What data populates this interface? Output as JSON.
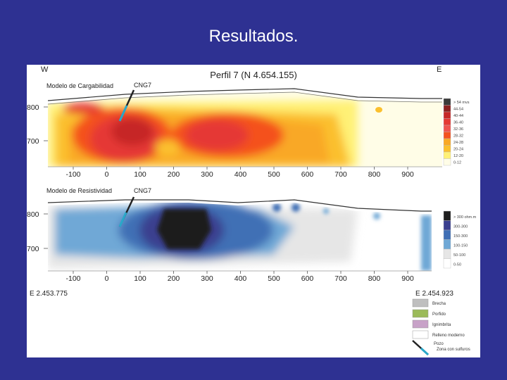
{
  "slide": {
    "title": "Resultados."
  },
  "figure": {
    "title": "Perfil 7 (N 4.654.155)",
    "direction_left": "W",
    "direction_right": "E",
    "coord_left": "E 2.453.775",
    "coord_right": "E 2.454.923",
    "well_label": "CNG7"
  },
  "chart_data": [
    {
      "type": "heatmap",
      "title": "Modelo de Cargabilidad",
      "x_ticks": [
        -100,
        0,
        100,
        200,
        300,
        400,
        500,
        600,
        700,
        800,
        900
      ],
      "y_ticks": [
        800,
        700
      ],
      "xlim": [
        -180,
        980
      ],
      "ylim": [
        660,
        840
      ],
      "legend": {
        "placement": "right",
        "entries": [
          {
            "label": "> 54 mvs",
            "color": "#3a3a3a"
          },
          {
            "label": "44-54",
            "color": "#8a2020"
          },
          {
            "label": "40-44",
            "color": "#c62828"
          },
          {
            "label": "36-40",
            "color": "#e53935"
          },
          {
            "label": "32-36",
            "color": "#ef5350"
          },
          {
            "label": "28-32",
            "color": "#f4511e"
          },
          {
            "label": "24-28",
            "color": "#f9a825"
          },
          {
            "label": "20-24",
            "color": "#fbc02d"
          },
          {
            "label": "12-20",
            "color": "#fff176"
          },
          {
            "label": "0-12",
            "color": "#fffde7"
          }
        ]
      }
    },
    {
      "type": "heatmap",
      "title": "Modelo de Resistividad",
      "x_ticks": [
        -100,
        0,
        100,
        200,
        300,
        400,
        500,
        600,
        700,
        800,
        900
      ],
      "y_ticks": [
        800,
        700
      ],
      "xlim": [
        -180,
        980
      ],
      "ylim": [
        660,
        840
      ],
      "legend": {
        "placement": "right",
        "entries": [
          {
            "label": "> 300 ohm.m",
            "color": "#1f1f1f"
          },
          {
            "label": "300-300",
            "color": "#3a3f8f"
          },
          {
            "label": "150-300",
            "color": "#3f6fb5"
          },
          {
            "label": "100-150",
            "color": "#6fa8d6"
          },
          {
            "label": "50-100",
            "color": "#e6e6e6"
          },
          {
            "label": "0-50",
            "color": "#ffffff"
          }
        ]
      }
    }
  ],
  "lithology_legend": [
    {
      "label": "Brecha",
      "color": "#bfbfbf"
    },
    {
      "label": "Porfido",
      "color": "#9bbb59"
    },
    {
      "label": "Ignimbrita",
      "color": "#c8a2c8"
    },
    {
      "label": "Relleno moderno",
      "color": "#ffffff"
    }
  ],
  "well_legend": {
    "label": "Pozo",
    "note": "Zona con sulfuros"
  }
}
